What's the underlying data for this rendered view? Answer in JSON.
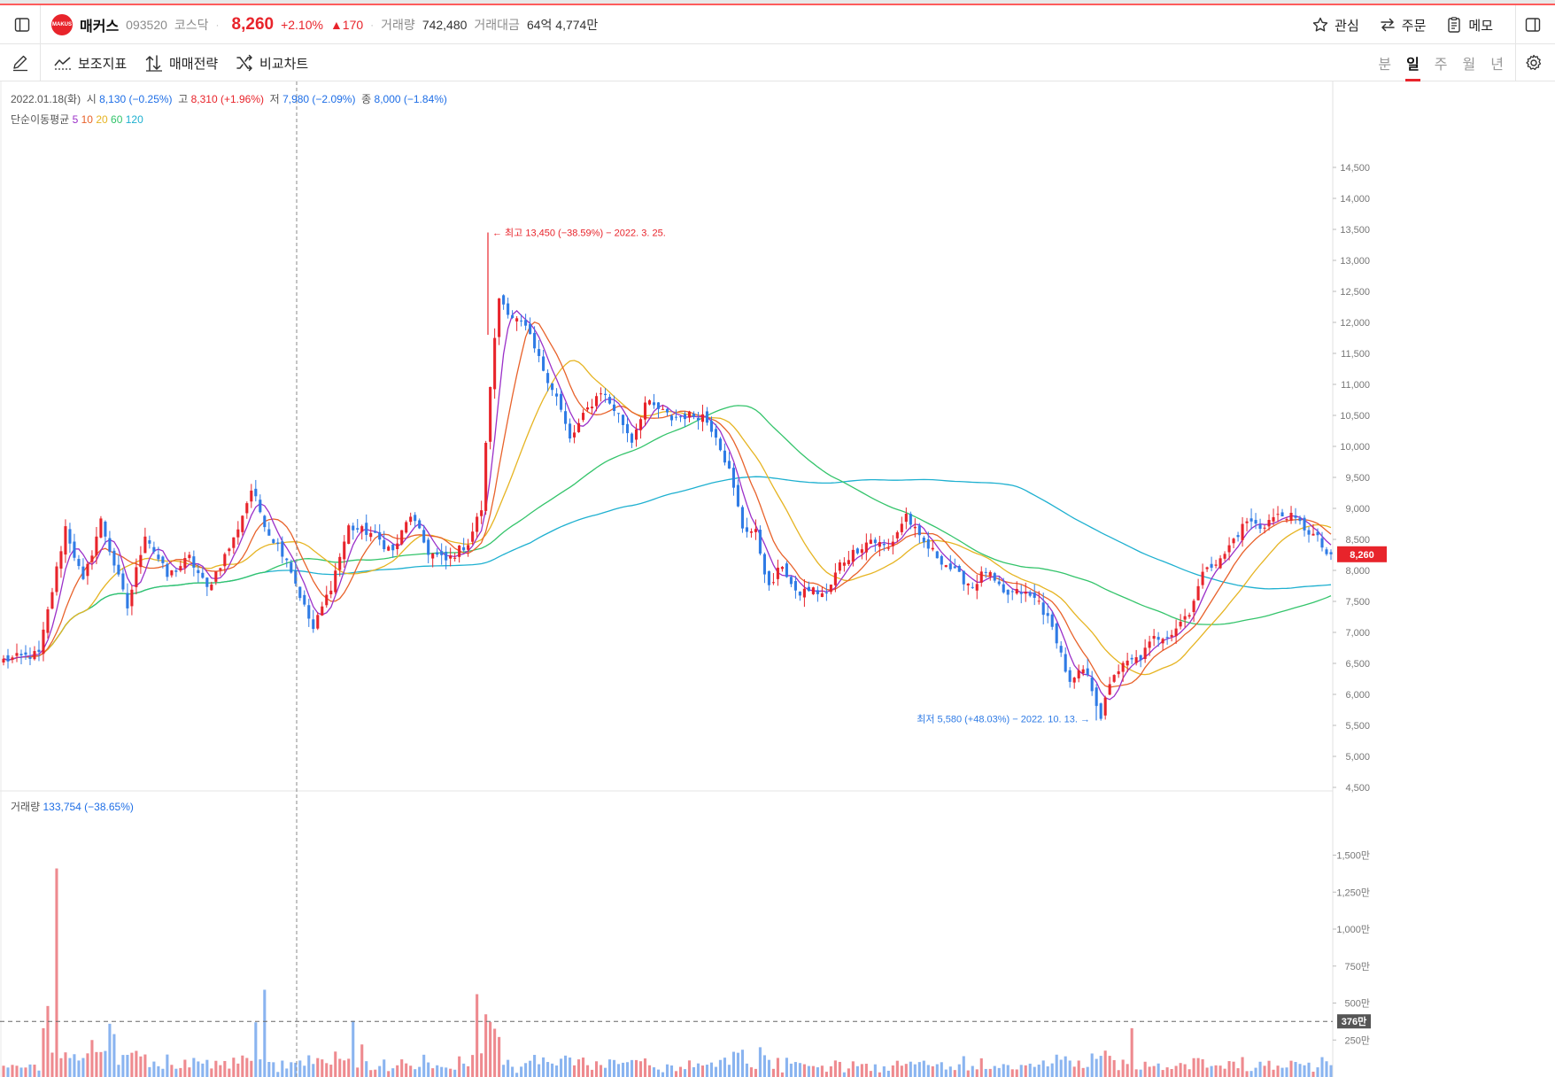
{
  "header": {
    "logo_text": "MAKUS",
    "name": "매커스",
    "code": "093520",
    "market": "코스닥",
    "price": "8,260",
    "change_pct": "+2.10%",
    "change_abs": "▲170",
    "volume_label": "거래량",
    "volume": "742,480",
    "value_label": "거래대금",
    "value": "64억 4,774만",
    "actions": {
      "watch": "관심",
      "order": "주문",
      "memo": "메모"
    }
  },
  "toolbar": {
    "indicators": "보조지표",
    "strategy": "매매전략",
    "compare": "비교차트",
    "periods": [
      {
        "label": "분",
        "active": false
      },
      {
        "label": "일",
        "active": true
      },
      {
        "label": "주",
        "active": false
      },
      {
        "label": "월",
        "active": false
      },
      {
        "label": "년",
        "active": false
      }
    ]
  },
  "info": {
    "date": "2022.01.18(화)",
    "open_label": "시",
    "open": "8,130 (−0.25%)",
    "high_label": "고",
    "high": "8,310 (+1.96%)",
    "low_label": "저",
    "low": "7,980 (−2.09%)",
    "close_label": "종",
    "close": "8,000 (−1.84%)",
    "ma_label": "단순이동평균",
    "ma_periods": [
      "5",
      "10",
      "20",
      "60",
      "120"
    ],
    "volume_label": "거래량",
    "volume_value": "133,754 (−38.65%)"
  },
  "chart_data": {
    "type": "candlestick",
    "price_axis": {
      "ticks": [
        "14,500",
        "14,000",
        "13,500",
        "13,000",
        "12,500",
        "12,000",
        "11,500",
        "11,000",
        "10,500",
        "10,000",
        "9,500",
        "9,000",
        "8,500",
        "8,000",
        "7,500",
        "7,000",
        "6,500",
        "6,000",
        "5,500",
        "5,000",
        "4,500"
      ],
      "range": [
        4500,
        14500
      ]
    },
    "volume_axis": {
      "ticks": [
        "1,500만",
        "1,250만",
        "1,000만",
        "750만",
        "500만",
        "250만"
      ],
      "range": [
        0,
        15000000
      ]
    },
    "last_price_tag": "8,260",
    "last_price": 8260,
    "avg_volume_tag": "376만",
    "avg_volume": 3760000,
    "high_annotation": "← 최고 13,450 (−38.59%) − 2022. 3. 25.",
    "low_annotation": "최저 5,580 (+48.03%) − 2022. 10. 13. →",
    "high_value": 13450,
    "low_value": 5580,
    "colors": {
      "up": "#e8242b",
      "down": "#2f7be5",
      "vol_up": "#ee8a8f",
      "vol_down": "#8ab4f0"
    },
    "ma_colors": {
      "5": "#9b30c9",
      "10": "#e8622b",
      "20": "#e6b422",
      "60": "#34c46b",
      "120": "#1eb0d0"
    },
    "anchors": [
      [
        0,
        6550
      ],
      [
        8,
        6650
      ],
      [
        14,
        8700
      ],
      [
        18,
        7800
      ],
      [
        22,
        8800
      ],
      [
        28,
        7400
      ],
      [
        32,
        8600
      ],
      [
        37,
        7900
      ],
      [
        42,
        8200
      ],
      [
        46,
        7700
      ],
      [
        52,
        8500
      ],
      [
        56,
        9300
      ],
      [
        60,
        8600
      ],
      [
        64,
        8200
      ],
      [
        68,
        7400
      ],
      [
        70,
        7050
      ],
      [
        74,
        7750
      ],
      [
        78,
        8700
      ],
      [
        83,
        8600
      ],
      [
        88,
        8300
      ],
      [
        92,
        8900
      ],
      [
        96,
        8300
      ],
      [
        100,
        8150
      ],
      [
        105,
        8450
      ],
      [
        108,
        9000
      ],
      [
        110,
        11000
      ],
      [
        112,
        12400
      ],
      [
        115,
        12100
      ],
      [
        118,
        11900
      ],
      [
        121,
        11400
      ],
      [
        125,
        10800
      ],
      [
        128,
        10100
      ],
      [
        132,
        10600
      ],
      [
        135,
        10900
      ],
      [
        139,
        10500
      ],
      [
        142,
        10100
      ],
      [
        145,
        10700
      ],
      [
        148,
        10600
      ],
      [
        151,
        10450
      ],
      [
        154,
        10500
      ],
      [
        158,
        10500
      ],
      [
        161,
        10200
      ],
      [
        164,
        9600
      ],
      [
        167,
        8700
      ],
      [
        170,
        8600
      ],
      [
        173,
        7700
      ],
      [
        176,
        8100
      ],
      [
        179,
        7600
      ],
      [
        182,
        7700
      ],
      [
        186,
        7600
      ],
      [
        189,
        8100
      ],
      [
        193,
        8350
      ],
      [
        196,
        8500
      ],
      [
        200,
        8350
      ],
      [
        204,
        8900
      ],
      [
        207,
        8500
      ],
      [
        210,
        8300
      ],
      [
        213,
        8100
      ],
      [
        216,
        7900
      ],
      [
        219,
        7750
      ],
      [
        222,
        8000
      ],
      [
        226,
        7600
      ],
      [
        230,
        7650
      ],
      [
        234,
        7500
      ],
      [
        238,
        6900
      ],
      [
        241,
        6150
      ],
      [
        244,
        6400
      ],
      [
        246,
        6100
      ],
      [
        248,
        5650
      ],
      [
        251,
        6350
      ],
      [
        254,
        6500
      ],
      [
        257,
        6600
      ],
      [
        260,
        6900
      ],
      [
        264,
        7000
      ],
      [
        268,
        7350
      ],
      [
        272,
        8100
      ],
      [
        275,
        8150
      ],
      [
        278,
        8500
      ],
      [
        281,
        8800
      ],
      [
        284,
        8700
      ],
      [
        287,
        8850
      ],
      [
        290,
        8900
      ],
      [
        293,
        8750
      ],
      [
        297,
        8500
      ],
      [
        300,
        8150
      ]
    ]
  }
}
